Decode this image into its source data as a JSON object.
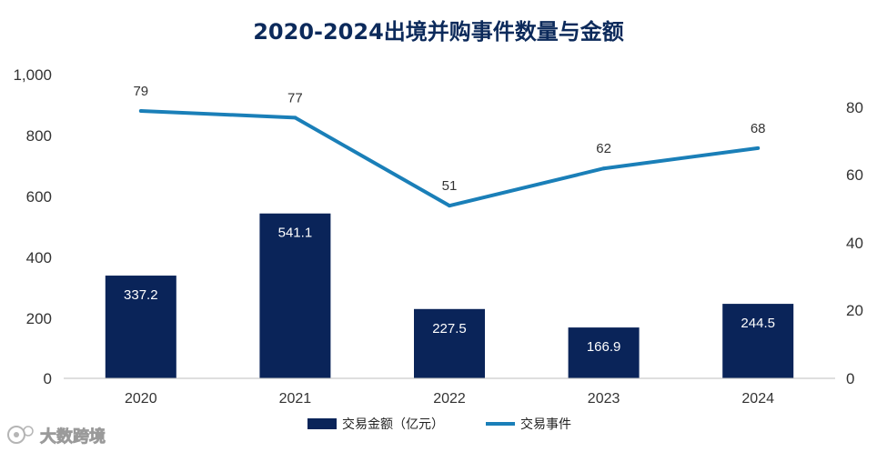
{
  "colors": {
    "bar": "#0a2459",
    "line": "#1a7fb8",
    "title": "#0c2a5b",
    "axis": "#bfbfbf"
  },
  "watermark": {
    "text": "大数跨境",
    "icon": "logo-icon"
  },
  "chart_data": {
    "type": "bar+line",
    "title": "2020-2024出境并购事件数量与金额",
    "categories": [
      "2020",
      "2021",
      "2022",
      "2023",
      "2024"
    ],
    "y_left": {
      "ticks": [
        "1,000",
        "800",
        "600",
        "400",
        "200",
        "0"
      ],
      "ylim": [
        0,
        1000
      ]
    },
    "y_right": {
      "ticks": [
        "80",
        "60",
        "40",
        "20",
        "0"
      ],
      "ylim": [
        0,
        90
      ]
    },
    "series": [
      {
        "name": "交易金额（亿元）",
        "type": "bar",
        "axis": "left",
        "values": [
          337.2,
          541.1,
          227.5,
          166.9,
          244.5
        ],
        "labels": [
          "337.2",
          "541.1",
          "227.5",
          "166.9",
          "244.5"
        ]
      },
      {
        "name": "交易事件",
        "type": "line",
        "axis": "right",
        "values": [
          79,
          77,
          51,
          62,
          68
        ],
        "labels": [
          "79",
          "77",
          "51",
          "62",
          "68"
        ]
      }
    ],
    "legend": "bottom"
  }
}
